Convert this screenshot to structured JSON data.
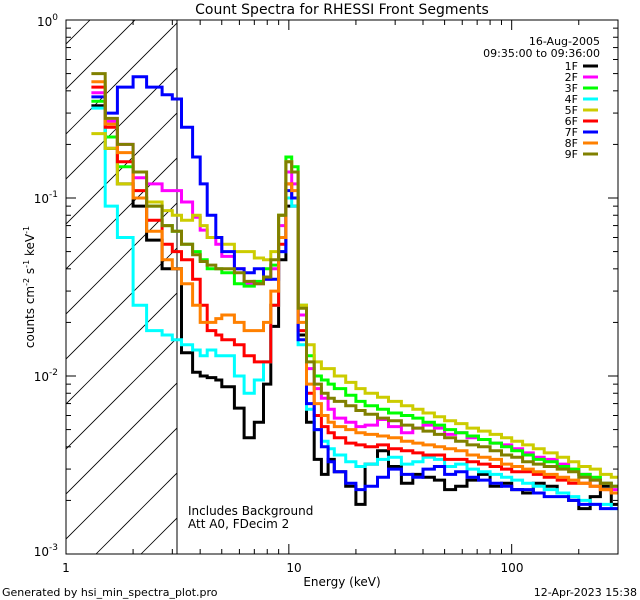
{
  "chart_data": {
    "type": "line",
    "step": true,
    "title": "Count Spectra for RHESSI Front Segments",
    "xlabel": "Energy (keV)",
    "ylabel_base": "counts cm",
    "ylabel_exp1": "-2",
    "ylabel_mid": " s",
    "ylabel_exp2": "-1",
    "ylabel_tail": " keV",
    "ylabel_exp3": "-1",
    "xscale": "log",
    "yscale": "log",
    "xlim": [
      1,
      300
    ],
    "ylim": [
      0.001,
      1
    ],
    "x_ticks": [
      {
        "value": 1,
        "label": "1"
      },
      {
        "value": 10,
        "label": "10"
      },
      {
        "value": 100,
        "label": "100"
      }
    ],
    "y_ticks": [
      {
        "value": 0.001,
        "base": "10",
        "exp": "-3"
      },
      {
        "value": 0.01,
        "base": "10",
        "exp": "-2"
      },
      {
        "value": 0.1,
        "base": "10",
        "exp": "-1"
      },
      {
        "value": 1,
        "base": "10",
        "exp": "0"
      }
    ],
    "shaded_region": {
      "x_min": 1,
      "x_max": 3,
      "pattern": "diagonal-hatch"
    },
    "date_label": "16-Aug-2005",
    "time_range_label": "09:35:00 to 09:36:00",
    "annotation_line1": "Includes Background",
    "annotation_line2": "Att A0, FDecim 2",
    "footer_left": "Generated by hsi_min_spectra_plot.pro",
    "footer_right": "12-Apr-2023 15:38",
    "legend_position": "top-right",
    "energy_bins_keV": [
      1.3,
      1.5,
      1.7,
      2.0,
      2.3,
      2.7,
      3.0,
      3.3,
      3.7,
      4.0,
      4.3,
      4.7,
      5.0,
      5.7,
      6.3,
      7.0,
      7.7,
      8.3,
      9.0,
      9.7,
      10.3,
      11.0,
      12.0,
      13.0,
      14.0,
      15.0,
      16.0,
      18.0,
      20.0,
      22.0,
      25.0,
      28.0,
      32.0,
      36.0,
      40.0,
      45.0,
      50.0,
      56.0,
      63.0,
      71.0,
      80.0,
      90.0,
      100.0,
      112.0,
      125.0,
      140.0,
      160.0,
      180.0,
      200.0,
      225.0,
      250.0,
      280.0,
      300.0
    ],
    "series": [
      {
        "name": "1F",
        "color": "#000000",
        "values": [
          0.33,
          0.19,
          0.12,
          0.09,
          0.058,
          0.04,
          0.04,
          0.0135,
          0.0105,
          0.01,
          0.0098,
          0.0095,
          0.0087,
          0.0066,
          0.0045,
          0.0055,
          0.009,
          0.019,
          0.045,
          0.09,
          0.09,
          0.017,
          0.0055,
          0.0034,
          0.0028,
          0.0034,
          0.0029,
          0.0024,
          0.0019,
          0.0032,
          0.0038,
          0.0031,
          0.0025,
          0.0028,
          0.0027,
          0.0026,
          0.0023,
          0.0024,
          0.0026,
          0.0028,
          0.0024,
          0.0025,
          0.0023,
          0.0022,
          0.0025,
          0.0024,
          0.0022,
          0.002,
          0.0018,
          0.0021,
          0.0024,
          0.0019
        ]
      },
      {
        "name": "2F",
        "color": "#ff00ff",
        "values": [
          0.39,
          0.27,
          0.2,
          0.13,
          0.12,
          0.11,
          0.11,
          0.095,
          0.078,
          0.066,
          0.06,
          0.055,
          0.047,
          0.04,
          0.033,
          0.033,
          0.035,
          0.04,
          0.07,
          0.14,
          0.12,
          0.022,
          0.011,
          0.0085,
          0.0075,
          0.0065,
          0.0058,
          0.0055,
          0.0052,
          0.0053,
          0.0057,
          0.0052,
          0.0048,
          0.0051,
          0.0053,
          0.0051,
          0.0047,
          0.0048,
          0.0045,
          0.0044,
          0.0042,
          0.0041,
          0.0039,
          0.0037,
          0.0035,
          0.0034,
          0.0032,
          0.003,
          0.0028,
          0.0026,
          0.0025,
          0.0023
        ]
      },
      {
        "name": "3F",
        "color": "#00ff00",
        "values": [
          0.35,
          0.22,
          0.15,
          0.1,
          0.09,
          0.07,
          0.065,
          0.055,
          0.05,
          0.045,
          0.04,
          0.04,
          0.038,
          0.033,
          0.032,
          0.034,
          0.04,
          0.042,
          0.08,
          0.17,
          0.15,
          0.025,
          0.013,
          0.01,
          0.0095,
          0.009,
          0.0085,
          0.0078,
          0.0072,
          0.0068,
          0.0065,
          0.0062,
          0.006,
          0.0058,
          0.0055,
          0.0053,
          0.005,
          0.0048,
          0.0046,
          0.0044,
          0.0042,
          0.004,
          0.0038,
          0.0036,
          0.0034,
          0.0033,
          0.0031,
          0.003,
          0.0028,
          0.0027,
          0.0025,
          0.0024
        ]
      },
      {
        "name": "4F",
        "color": "#00ffff",
        "values": [
          0.32,
          0.09,
          0.06,
          0.025,
          0.018,
          0.017,
          0.016,
          0.015,
          0.014,
          0.013,
          0.014,
          0.013,
          0.013,
          0.01,
          0.008,
          0.0095,
          0.012,
          0.025,
          0.05,
          0.1,
          0.09,
          0.015,
          0.0065,
          0.005,
          0.0043,
          0.0039,
          0.0036,
          0.0033,
          0.0031,
          0.0032,
          0.0034,
          0.0035,
          0.0032,
          0.0033,
          0.0035,
          0.0034,
          0.0031,
          0.0032,
          0.003,
          0.0029,
          0.0028,
          0.0027,
          0.0026,
          0.0025,
          0.0024,
          0.0023,
          0.0022,
          0.0021,
          0.002,
          0.0019,
          0.0019,
          0.0018
        ]
      },
      {
        "name": "5F",
        "color": "#cccc00",
        "values": [
          0.23,
          0.19,
          0.12,
          0.1,
          0.095,
          0.085,
          0.08,
          0.075,
          0.08,
          0.07,
          0.06,
          0.06,
          0.055,
          0.05,
          0.05,
          0.046,
          0.045,
          0.05,
          0.08,
          0.16,
          0.14,
          0.025,
          0.015,
          0.012,
          0.011,
          0.011,
          0.01,
          0.0092,
          0.0085,
          0.008,
          0.0076,
          0.0072,
          0.0068,
          0.0065,
          0.0062,
          0.0059,
          0.0056,
          0.0054,
          0.0051,
          0.0049,
          0.0047,
          0.0045,
          0.0043,
          0.0041,
          0.0039,
          0.0037,
          0.0035,
          0.0033,
          0.0031,
          0.003,
          0.0028,
          0.0027
        ]
      },
      {
        "name": "6F",
        "color": "#ff0000",
        "values": [
          0.42,
          0.25,
          0.16,
          0.11,
          0.075,
          0.055,
          0.05,
          0.045,
          0.035,
          0.025,
          0.018,
          0.017,
          0.016,
          0.015,
          0.013,
          0.012,
          0.012,
          0.025,
          0.055,
          0.12,
          0.1,
          0.018,
          0.008,
          0.006,
          0.0052,
          0.0048,
          0.0045,
          0.0042,
          0.0041,
          0.004,
          0.0041,
          0.0039,
          0.0038,
          0.0037,
          0.0036,
          0.0036,
          0.0034,
          0.0034,
          0.0033,
          0.0032,
          0.0031,
          0.003,
          0.0029,
          0.0029,
          0.0028,
          0.0027,
          0.0026,
          0.0025,
          0.0025,
          0.0024,
          0.0023,
          0.0022
        ]
      },
      {
        "name": "7F",
        "color": "#0000ff",
        "values": [
          0.37,
          0.3,
          0.42,
          0.48,
          0.42,
          0.38,
          0.36,
          0.25,
          0.17,
          0.12,
          0.08,
          0.06,
          0.05,
          0.04,
          0.038,
          0.04,
          0.035,
          0.035,
          0.05,
          0.11,
          0.1,
          0.016,
          0.007,
          0.005,
          0.004,
          0.0033,
          0.0029,
          0.0025,
          0.0023,
          0.0024,
          0.0027,
          0.003,
          0.0028,
          0.0027,
          0.003,
          0.0031,
          0.0028,
          0.0029,
          0.0027,
          0.0026,
          0.0025,
          0.0024,
          0.0023,
          0.0023,
          0.0022,
          0.0021,
          0.0021,
          0.002,
          0.0019,
          0.0019,
          0.0018,
          0.0018
        ]
      },
      {
        "name": "8F",
        "color": "#ff8000",
        "values": [
          0.45,
          0.26,
          0.18,
          0.1,
          0.065,
          0.045,
          0.04,
          0.033,
          0.025,
          0.02,
          0.02,
          0.021,
          0.022,
          0.02,
          0.018,
          0.018,
          0.02,
          0.03,
          0.06,
          0.12,
          0.11,
          0.02,
          0.009,
          0.007,
          0.006,
          0.0055,
          0.0052,
          0.005,
          0.0048,
          0.0047,
          0.0046,
          0.0045,
          0.0043,
          0.0042,
          0.0041,
          0.004,
          0.0039,
          0.0038,
          0.0036,
          0.0035,
          0.0034,
          0.0032,
          0.0031,
          0.003,
          0.0029,
          0.0028,
          0.0027,
          0.0026,
          0.0025,
          0.0024,
          0.0023,
          0.0022
        ]
      },
      {
        "name": "9F",
        "color": "#808000",
        "values": [
          0.5,
          0.28,
          0.2,
          0.14,
          0.09,
          0.07,
          0.065,
          0.055,
          0.048,
          0.044,
          0.042,
          0.04,
          0.04,
          0.038,
          0.034,
          0.033,
          0.036,
          0.045,
          0.08,
          0.16,
          0.14,
          0.024,
          0.012,
          0.009,
          0.008,
          0.0075,
          0.0072,
          0.0068,
          0.0064,
          0.0061,
          0.0058,
          0.0056,
          0.0053,
          0.0051,
          0.0049,
          0.0047,
          0.0045,
          0.0043,
          0.0041,
          0.004,
          0.0038,
          0.0036,
          0.0035,
          0.0033,
          0.0032,
          0.0031,
          0.003,
          0.0029,
          0.0027,
          0.0026,
          0.0025,
          0.0024
        ]
      }
    ]
  }
}
